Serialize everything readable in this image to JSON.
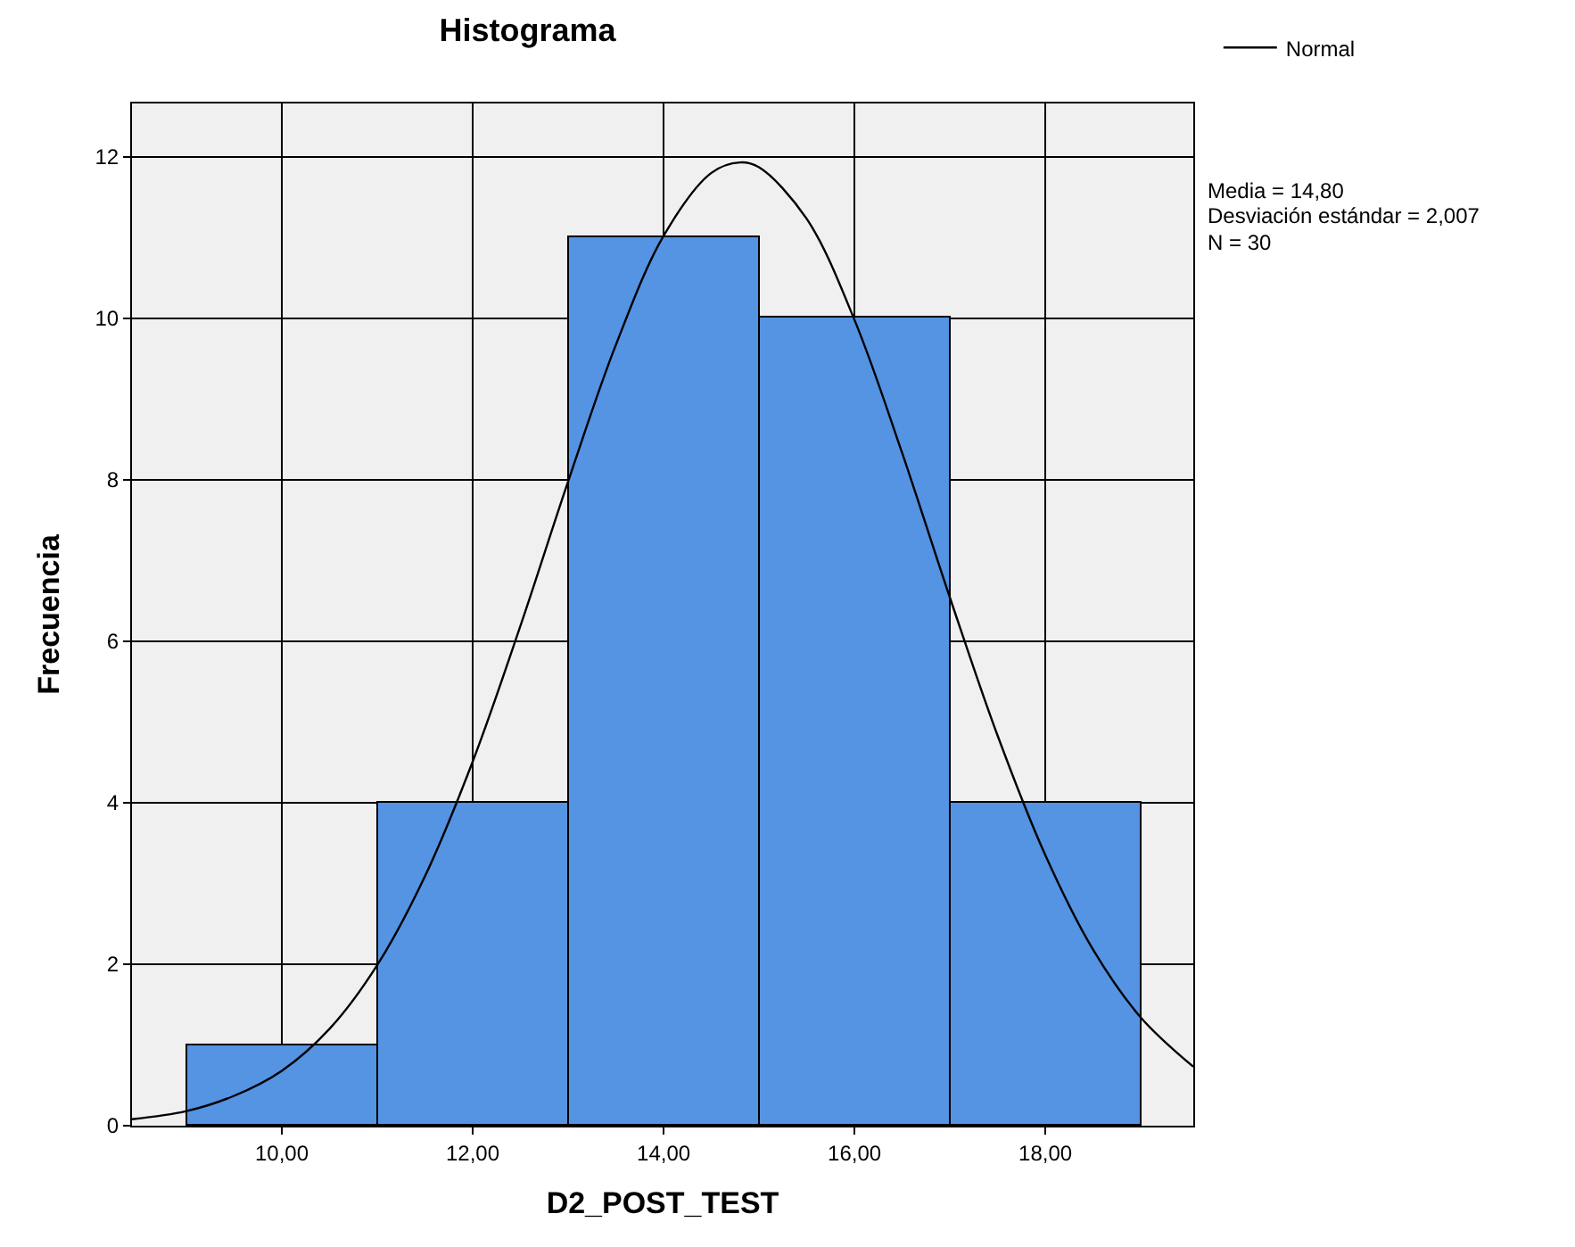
{
  "chart_data": {
    "type": "histogram",
    "title": "Histograma",
    "xlabel": "D2_POST_TEST",
    "ylabel": "Frecuencia",
    "series": [
      {
        "type": "histogram",
        "color": "#5593e3",
        "bins": [
          9,
          11,
          13,
          15,
          17,
          19
        ],
        "values": [
          1,
          4,
          11,
          10,
          4
        ]
      },
      {
        "type": "line",
        "name": "Normal",
        "color": "#000000",
        "line_style": "solid",
        "marker": "none",
        "x": [
          8.43,
          9,
          9.5,
          10,
          10.5,
          11,
          11.5,
          12,
          12.5,
          13,
          13.5,
          14,
          14.5,
          14.8,
          15,
          15.5,
          16,
          16.5,
          17,
          17.5,
          18,
          18.5,
          19,
          19.55
        ],
        "values": [
          0.08,
          0.18,
          0.37,
          0.68,
          1.2,
          1.99,
          3.09,
          4.51,
          6.19,
          7.98,
          9.67,
          11.02,
          11.8,
          11.93,
          11.87,
          11.23,
          9.98,
          8.33,
          6.54,
          4.83,
          3.35,
          2.18,
          1.34,
          0.73
        ]
      }
    ],
    "annotations": [
      "Media = 14,80",
      "Desviación estándar = 2,007",
      "N = 30"
    ],
    "xlim": [
      8.43,
      19.55
    ],
    "xticks": [
      {
        "value": 10,
        "label": "10,00"
      },
      {
        "value": 12,
        "label": "12,00"
      },
      {
        "value": 14,
        "label": "14,00"
      },
      {
        "value": 16,
        "label": "16,00"
      },
      {
        "value": 18,
        "label": "18,00"
      }
    ],
    "ylim": [
      0,
      12.66
    ],
    "yticks": [
      0,
      2,
      4,
      6,
      8,
      10,
      12
    ],
    "grid": true,
    "legend": "top right"
  }
}
